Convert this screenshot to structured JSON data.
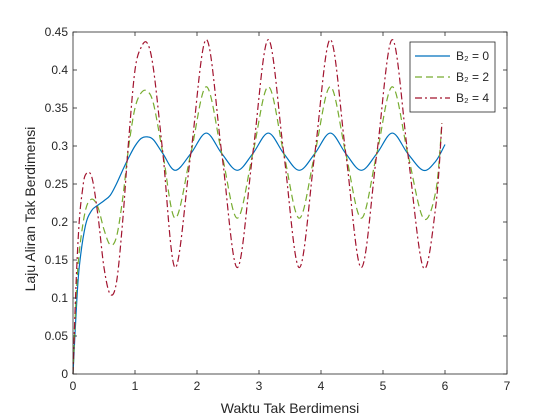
{
  "chart_data": {
    "type": "line",
    "xlabel": "Waktu Tak Berdimensi",
    "ylabel": "Laju Aliran Tak Berdimensi",
    "xlim": [
      0,
      7
    ],
    "ylim": [
      0,
      0.45
    ],
    "xticks": [
      0,
      1,
      2,
      3,
      4,
      5,
      6,
      7
    ],
    "yticks": [
      0,
      0.05,
      0.1,
      0.15,
      0.2,
      0.25,
      0.3,
      0.35,
      0.4,
      0.45
    ],
    "grid": false,
    "legend_position": "top-right",
    "series": [
      {
        "name": "B₂ = 0",
        "color": "#0072BD",
        "dash": "solid",
        "x": [
          0,
          0.05,
          0.1,
          0.2,
          0.3,
          0.4,
          0.5,
          0.6,
          0.7,
          0.8,
          0.9,
          1.0,
          1.1,
          1.2,
          1.3,
          1.45,
          1.65,
          1.9,
          2.15,
          2.4,
          2.65,
          2.9,
          3.15,
          3.4,
          3.65,
          3.9,
          4.15,
          4.4,
          4.65,
          4.9,
          5.15,
          5.4,
          5.65,
          5.85,
          6.0
        ],
        "y": [
          0,
          0.08,
          0.14,
          0.195,
          0.215,
          0.222,
          0.228,
          0.235,
          0.25,
          0.268,
          0.285,
          0.3,
          0.31,
          0.312,
          0.308,
          0.29,
          0.268,
          0.29,
          0.317,
          0.29,
          0.268,
          0.29,
          0.317,
          0.29,
          0.268,
          0.29,
          0.317,
          0.29,
          0.268,
          0.29,
          0.317,
          0.29,
          0.268,
          0.28,
          0.302
        ]
      },
      {
        "name": "B₂ = 2",
        "color": "#77AC30",
        "dash": "dashed",
        "x": [
          0,
          0.05,
          0.1,
          0.2,
          0.3,
          0.4,
          0.5,
          0.6,
          0.7,
          0.8,
          0.9,
          1.0,
          1.1,
          1.2,
          1.3,
          1.45,
          1.65,
          1.9,
          2.15,
          2.4,
          2.65,
          2.9,
          3.15,
          3.4,
          3.65,
          3.9,
          4.15,
          4.4,
          4.65,
          4.9,
          5.15,
          5.4,
          5.65,
          5.85,
          5.95
        ],
        "y": [
          0,
          0.1,
          0.16,
          0.215,
          0.23,
          0.22,
          0.19,
          0.17,
          0.18,
          0.23,
          0.3,
          0.35,
          0.37,
          0.372,
          0.355,
          0.29,
          0.205,
          0.29,
          0.378,
          0.29,
          0.205,
          0.29,
          0.378,
          0.29,
          0.205,
          0.29,
          0.378,
          0.29,
          0.205,
          0.29,
          0.378,
          0.29,
          0.205,
          0.24,
          0.33
        ]
      },
      {
        "name": "B₂ = 4",
        "color": "#A2142F",
        "dash": "dashdot",
        "x": [
          0,
          0.05,
          0.1,
          0.15,
          0.2,
          0.3,
          0.4,
          0.5,
          0.6,
          0.7,
          0.8,
          0.9,
          1.0,
          1.1,
          1.2,
          1.3,
          1.45,
          1.65,
          1.9,
          2.15,
          2.4,
          2.65,
          2.9,
          3.15,
          3.4,
          3.65,
          3.9,
          4.15,
          4.4,
          4.65,
          4.9,
          5.15,
          5.4,
          5.65,
          5.85,
          5.95
        ],
        "y": [
          0,
          0.12,
          0.2,
          0.24,
          0.262,
          0.26,
          0.21,
          0.14,
          0.105,
          0.12,
          0.2,
          0.31,
          0.4,
          0.43,
          0.435,
          0.4,
          0.29,
          0.14,
          0.29,
          0.44,
          0.29,
          0.14,
          0.29,
          0.44,
          0.29,
          0.14,
          0.29,
          0.44,
          0.29,
          0.14,
          0.29,
          0.44,
          0.29,
          0.14,
          0.22,
          0.33
        ]
      }
    ]
  }
}
